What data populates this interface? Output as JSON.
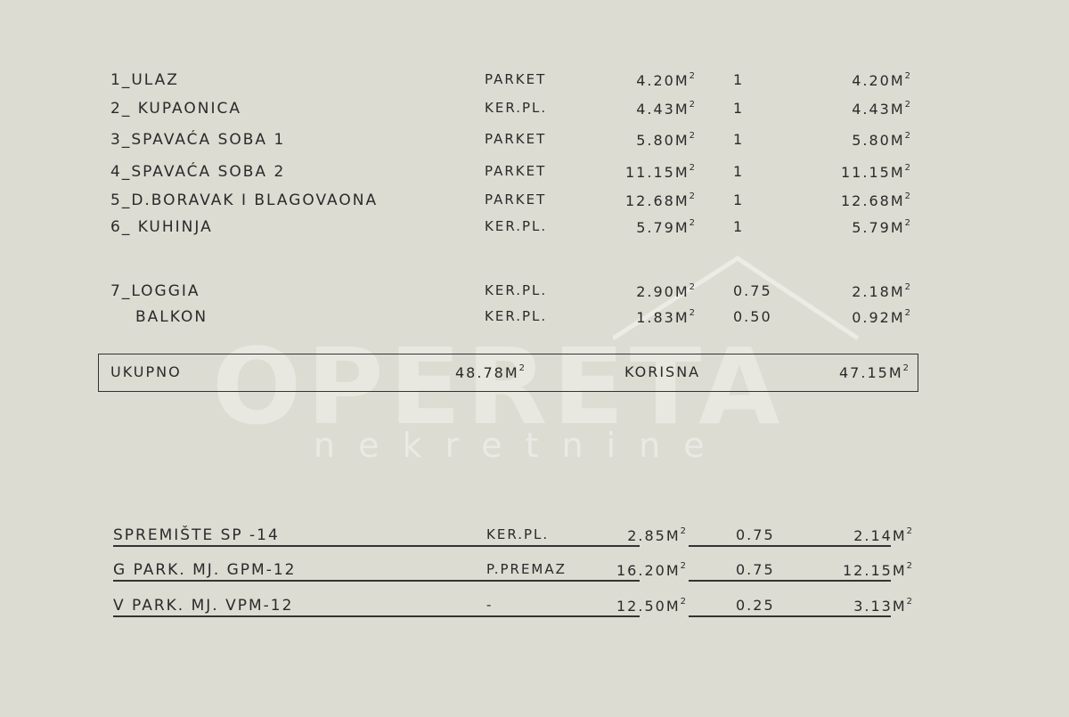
{
  "unit": "M",
  "unit_exp": "2",
  "rooms": [
    {
      "name": "1_ULAZ",
      "material": "PARKET",
      "area": "4.20",
      "coef": "1",
      "total": "4.20"
    },
    {
      "name": "2_ KUPAONICA",
      "material": "KER.PL.",
      "area": "4.43",
      "coef": "1",
      "total": "4.43"
    },
    {
      "name": "3_SPAVAĆA SOBA 1",
      "material": "PARKET",
      "area": "5.80",
      "coef": "1",
      "total": "5.80"
    },
    {
      "name": "4_SPAVAĆA SOBA 2",
      "material": "PARKET",
      "area": "11.15",
      "coef": "1",
      "total": "11.15"
    },
    {
      "name": "5_D.BORAVAK I BLAGOVAONA",
      "material": "PARKET",
      "area": "12.68",
      "coef": "1",
      "total": "12.68"
    },
    {
      "name": "6_ KUHINJA",
      "material": "KER.PL.",
      "area": "5.79",
      "coef": "1",
      "total": "5.79"
    },
    {
      "name": "7_LOGGIA",
      "material": "KER.PL.",
      "area": "2.90",
      "coef": "0.75",
      "total": "2.18"
    },
    {
      "name": "BALKON",
      "material": "KER.PL.",
      "area": "1.83",
      "coef": "0.50",
      "total": "0.92"
    }
  ],
  "summary": {
    "label": "UKUPNO",
    "gross": "48.78",
    "useful_label": "KORISNA",
    "useful": "47.15"
  },
  "extras": [
    {
      "name": "SPREMIŠTE   SP -14",
      "material": "KER.PL.",
      "area": "2.85",
      "coef": "0.75",
      "total": "2.14"
    },
    {
      "name": "G PARK. MJ.  GPM-12",
      "material": "P.PREMAZ",
      "area": "16.20",
      "coef": "0.75",
      "total": "12.15"
    },
    {
      "name": "V PARK. MJ.   VPM-12",
      "material": "-",
      "area": "12.50",
      "coef": "0.25",
      "total": "3.13"
    }
  ],
  "watermark": {
    "brand": "OPERETA",
    "sub": "nekretnine"
  },
  "colors": {
    "background": "#dcdcd2",
    "text": "#2a2a2a"
  }
}
